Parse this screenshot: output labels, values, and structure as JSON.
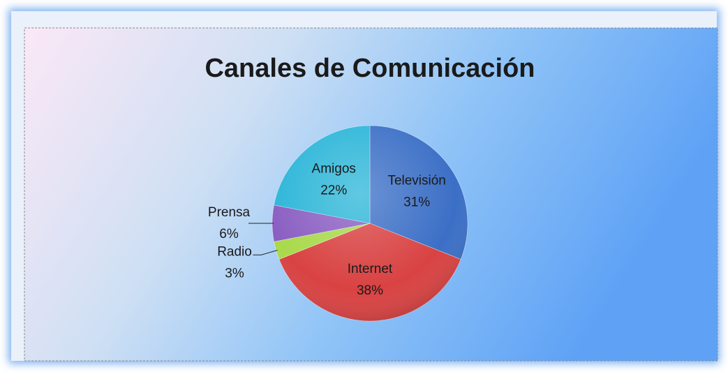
{
  "chart_data": {
    "type": "pie",
    "title": "Canales de Comunicación",
    "categories": [
      "Televisión",
      "Internet",
      "Radio",
      "Prensa",
      "Amigos"
    ],
    "values": [
      31,
      38,
      3,
      6,
      22
    ],
    "value_labels": [
      "31%",
      "38%",
      "3%",
      "6%",
      "22%"
    ],
    "colors": [
      "#3b6fc6",
      "#d94242",
      "#a9d94c",
      "#8a5ec2",
      "#2cb6d8"
    ]
  }
}
